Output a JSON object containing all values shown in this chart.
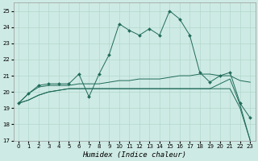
{
  "xlabel": "Humidex (Indice chaleur)",
  "background_color": "#ceeae4",
  "line_color": "#1f6b5a",
  "grid_color": "#b0d8cc",
  "xlim": [
    -0.5,
    23.5
  ],
  "ylim": [
    17,
    25.5
  ],
  "yticks": [
    17,
    18,
    19,
    20,
    21,
    22,
    23,
    24,
    25
  ],
  "xticks": [
    0,
    1,
    2,
    3,
    4,
    5,
    6,
    7,
    8,
    9,
    10,
    11,
    12,
    13,
    14,
    15,
    16,
    17,
    18,
    19,
    20,
    21,
    22,
    23
  ],
  "series_main": {
    "x": [
      0,
      1,
      2,
      3,
      4,
      5,
      6,
      7,
      8,
      9,
      10,
      11,
      12,
      13,
      14,
      15,
      16,
      17,
      18,
      19,
      20,
      21,
      22,
      23
    ],
    "y": [
      19.3,
      19.9,
      20.4,
      20.5,
      20.5,
      20.5,
      21.1,
      19.7,
      21.1,
      22.3,
      24.2,
      23.8,
      23.5,
      23.9,
      23.5,
      25.0,
      24.5,
      23.5,
      21.2,
      20.6,
      21.0,
      21.2,
      19.3,
      18.4
    ]
  },
  "series_flat1": {
    "x": [
      0,
      1,
      2,
      3,
      4,
      5,
      6,
      7,
      8,
      9,
      10,
      11,
      12,
      13,
      14,
      15,
      16,
      17,
      18,
      19,
      20,
      21,
      22,
      23
    ],
    "y": [
      19.3,
      19.9,
      20.3,
      20.4,
      20.4,
      20.4,
      20.5,
      20.5,
      20.5,
      20.6,
      20.7,
      20.7,
      20.8,
      20.8,
      20.8,
      20.9,
      21.0,
      21.0,
      21.1,
      21.1,
      21.0,
      21.0,
      20.7,
      20.6
    ]
  },
  "series_diag1": {
    "x": [
      0,
      1,
      2,
      3,
      4,
      5,
      6,
      7,
      8,
      9,
      10,
      11,
      12,
      13,
      14,
      15,
      16,
      17,
      18,
      19,
      20,
      21,
      22,
      23
    ],
    "y": [
      19.3,
      19.5,
      19.8,
      20.0,
      20.1,
      20.2,
      20.2,
      20.2,
      20.2,
      20.2,
      20.2,
      20.2,
      20.2,
      20.2,
      20.2,
      20.2,
      20.2,
      20.2,
      20.2,
      20.2,
      20.2,
      20.2,
      19.0,
      17.0
    ]
  },
  "series_diag2": {
    "x": [
      0,
      1,
      2,
      3,
      4,
      5,
      6,
      7,
      8,
      9,
      10,
      11,
      12,
      13,
      14,
      15,
      16,
      17,
      18,
      19,
      20,
      21,
      22,
      23
    ],
    "y": [
      19.3,
      19.5,
      19.8,
      20.0,
      20.1,
      20.2,
      20.2,
      20.2,
      20.2,
      20.2,
      20.2,
      20.2,
      20.2,
      20.2,
      20.2,
      20.2,
      20.2,
      20.2,
      20.2,
      20.2,
      20.5,
      20.8,
      19.2,
      17.0
    ]
  },
  "tick_fontsize": 5.0,
  "label_fontsize": 6.5
}
